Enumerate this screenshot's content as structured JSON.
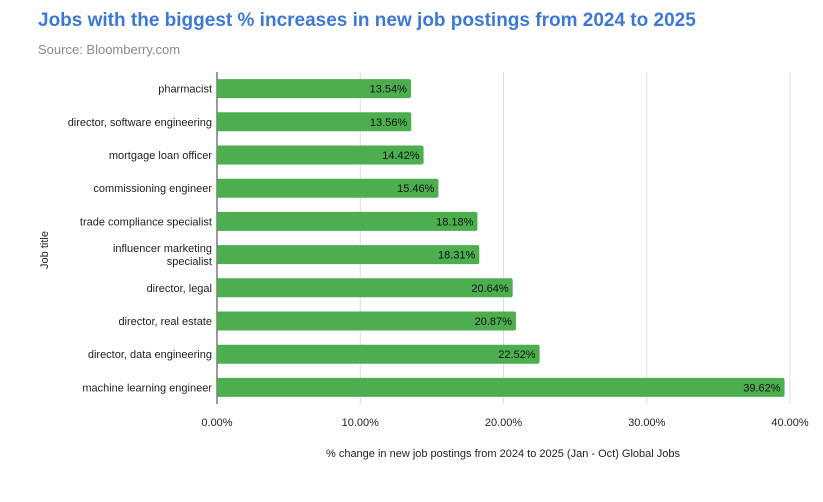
{
  "chart_data": {
    "type": "bar",
    "orientation": "horizontal",
    "title": "Jobs with the biggest % increases in new job postings from 2024 to 2025",
    "subtitle": "Source: Bloomberry.com",
    "xlabel": "% change in new job postings from 2024 to 2025 (Jan - Oct) Global Jobs",
    "ylabel": "Job title",
    "xlim": [
      0,
      40
    ],
    "xticks": [
      0,
      10,
      20,
      30,
      40
    ],
    "xtick_labels": [
      "0.00%",
      "10.00%",
      "20.00%",
      "30.00%",
      "40.00%"
    ],
    "bar_color": "#4cae4f",
    "grid": true,
    "categories": [
      [
        "pharmacist"
      ],
      [
        "director, software engineering"
      ],
      [
        "mortgage loan officer"
      ],
      [
        "commissioning engineer"
      ],
      [
        "trade compliance specialist"
      ],
      [
        "influencer marketing",
        "specialist"
      ],
      [
        "director, legal"
      ],
      [
        "director, real estate"
      ],
      [
        "director, data engineering"
      ],
      [
        "machine learning engineer"
      ]
    ],
    "values": [
      13.54,
      13.56,
      14.42,
      15.46,
      18.18,
      18.31,
      20.64,
      20.87,
      22.52,
      39.62
    ],
    "value_labels": [
      "13.54%",
      "13.56%",
      "14.42%",
      "15.46%",
      "18.18%",
      "18.31%",
      "20.64%",
      "20.87%",
      "22.52%",
      "39.62%"
    ]
  }
}
